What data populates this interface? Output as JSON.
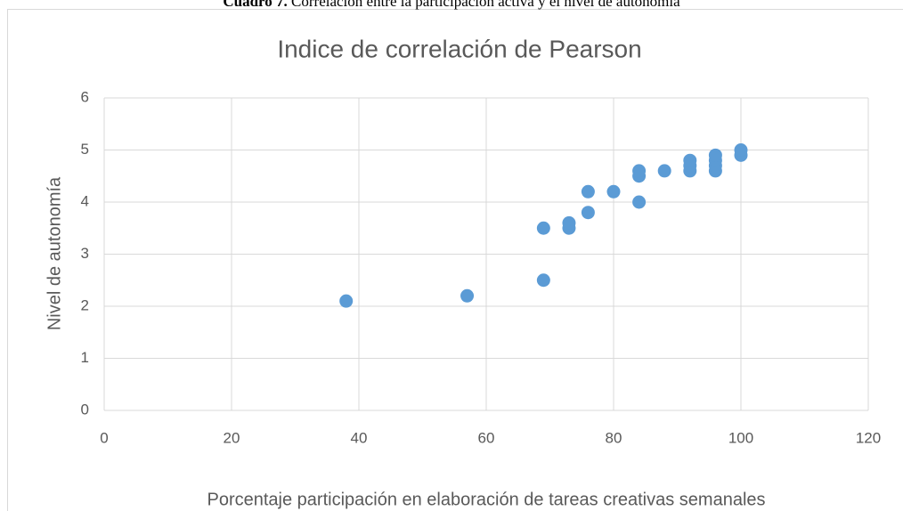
{
  "caption_label": "Cuadro 7.",
  "caption": "Correlación entre la participación activa y el nivel de autonomía",
  "chart_data": {
    "type": "scatter",
    "title": "Indice de correlación de Pearson",
    "xlabel": "Porcentaje participación en elaboración de tareas creativas semanales",
    "ylabel": "Nivel de autonomía",
    "x": [
      38,
      57,
      69,
      69,
      73,
      73,
      76,
      76,
      80,
      84,
      84,
      84,
      88,
      92,
      92,
      92,
      96,
      96,
      96,
      96,
      100,
      100
    ],
    "values": [
      2.1,
      2.2,
      2.5,
      3.5,
      3.5,
      3.6,
      3.8,
      4.2,
      4.2,
      4.0,
      4.5,
      4.6,
      4.6,
      4.6,
      4.7,
      4.8,
      4.6,
      4.7,
      4.8,
      4.9,
      4.9,
      5.0
    ],
    "color": "#5b9bd5",
    "xlim": [
      0,
      120
    ],
    "xticks": [
      0,
      20,
      40,
      60,
      80,
      100,
      120
    ],
    "ylim": [
      0,
      6
    ],
    "yticks": [
      0,
      1,
      2,
      3,
      4,
      5,
      6
    ],
    "grid": true
  }
}
